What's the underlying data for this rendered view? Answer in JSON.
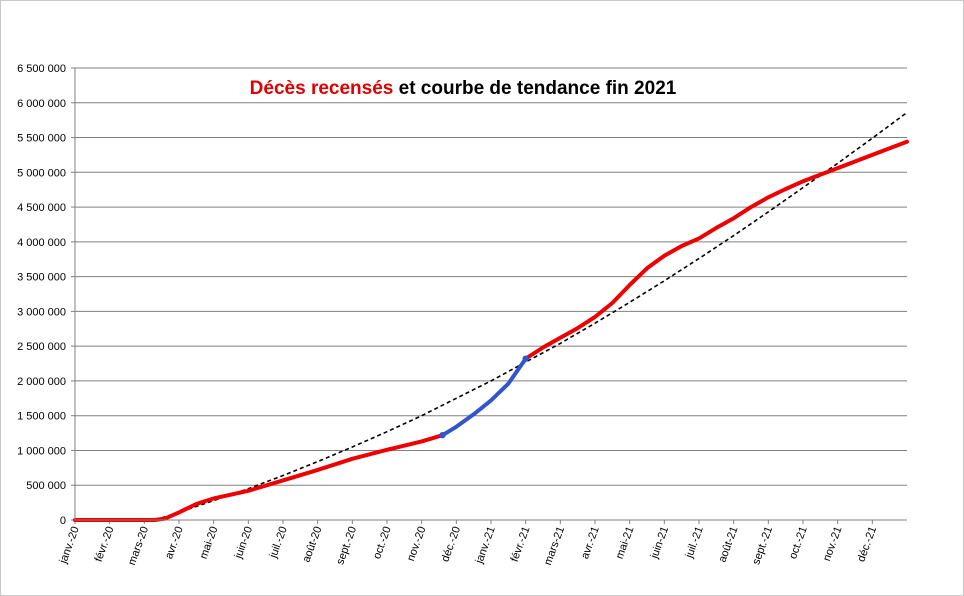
{
  "chart_data": {
    "type": "line",
    "title": {
      "highlight": "Décès recensés",
      "rest": " et courbe de tendance fin 2021"
    },
    "xlabel": "",
    "ylabel": "",
    "ylim": [
      0,
      6500000
    ],
    "y_ticks": [
      0,
      500000,
      1000000,
      1500000,
      2000000,
      2500000,
      3000000,
      3500000,
      4000000,
      4500000,
      5000000,
      5500000,
      6000000,
      6500000
    ],
    "y_tick_labels": [
      "0",
      "500 000",
      "1 000 000",
      "1 500 000",
      "2 000 000",
      "2 500 000",
      "3 000 000",
      "3 500 000",
      "4 000 000",
      "4 500 000",
      "5 000 000",
      "5 500 000",
      "6 000 000",
      "6 500 000"
    ],
    "x_tick_labels": [
      "janv.-20",
      "févr.-20",
      "mars-20",
      "avr.-20",
      "mai-20",
      "juin-20",
      "juil.-20",
      "août-20",
      "sept.-20",
      "oct.-20",
      "nov.-20",
      "déc.-20",
      "janv.-21",
      "févr.-21",
      "mars-21",
      "avr.-21",
      "mai-21",
      "juin-21",
      "juil.-21",
      "août-21",
      "sept.-21",
      "oct.-21",
      "nov.-21",
      "déc.-21"
    ],
    "x_unit": "months since janv.-20",
    "grid": true,
    "colors": {
      "recorded": "#ee0000",
      "highlight": "#3355cc",
      "trend": "#000000",
      "grid": "#808080",
      "axis": "#808080"
    },
    "series": [
      {
        "name": "Décès recensés",
        "style": "solid",
        "segments": [
          {
            "color": "#ee0000",
            "x": [
              0,
              2.3,
              2.6,
              3.0,
              3.5,
              4.0,
              5.0,
              6.0,
              7.0,
              8.0,
              9.0,
              10.0,
              10.6
            ],
            "y": [
              0,
              0,
              20000,
              110000,
              230000,
              310000,
              420000,
              570000,
              720000,
              880000,
              1010000,
              1130000,
              1220000
            ]
          },
          {
            "color": "#3355cc",
            "x": [
              10.6,
              11.0,
              11.5,
              12.0,
              12.5,
              13.0
            ],
            "y": [
              1220000,
              1340000,
              1520000,
              1720000,
              1960000,
              2320000
            ]
          },
          {
            "color": "#ee0000",
            "x": [
              13.0,
              13.5,
              14.0,
              14.5,
              15.0,
              15.5,
              16.0,
              16.5,
              17.0,
              17.5,
              18.0,
              18.5,
              19.0,
              19.5,
              20.0,
              20.5,
              21.0,
              22.0,
              23.0,
              24.0
            ],
            "y": [
              2320000,
              2480000,
              2620000,
              2760000,
              2920000,
              3120000,
              3380000,
              3620000,
              3800000,
              3940000,
              4050000,
              4200000,
              4340000,
              4500000,
              4640000,
              4760000,
              4870000,
              5060000,
              5250000,
              5440000
            ]
          }
        ]
      },
      {
        "name": "",
        "style": "dashed",
        "color": "#000000",
        "x": [
          2.3,
          3,
          4,
          5,
          6,
          7,
          8,
          9,
          10,
          11,
          12,
          13,
          14,
          15,
          16,
          17,
          18,
          19,
          20,
          21,
          22,
          23,
          24
        ],
        "y": [
          0,
          110000,
          280000,
          450000,
          640000,
          840000,
          1050000,
          1270000,
          1500000,
          1750000,
          2000000,
          2270000,
          2540000,
          2830000,
          3130000,
          3440000,
          3760000,
          4090000,
          4430000,
          4780000,
          5130000,
          5490000,
          5860000
        ]
      }
    ]
  }
}
